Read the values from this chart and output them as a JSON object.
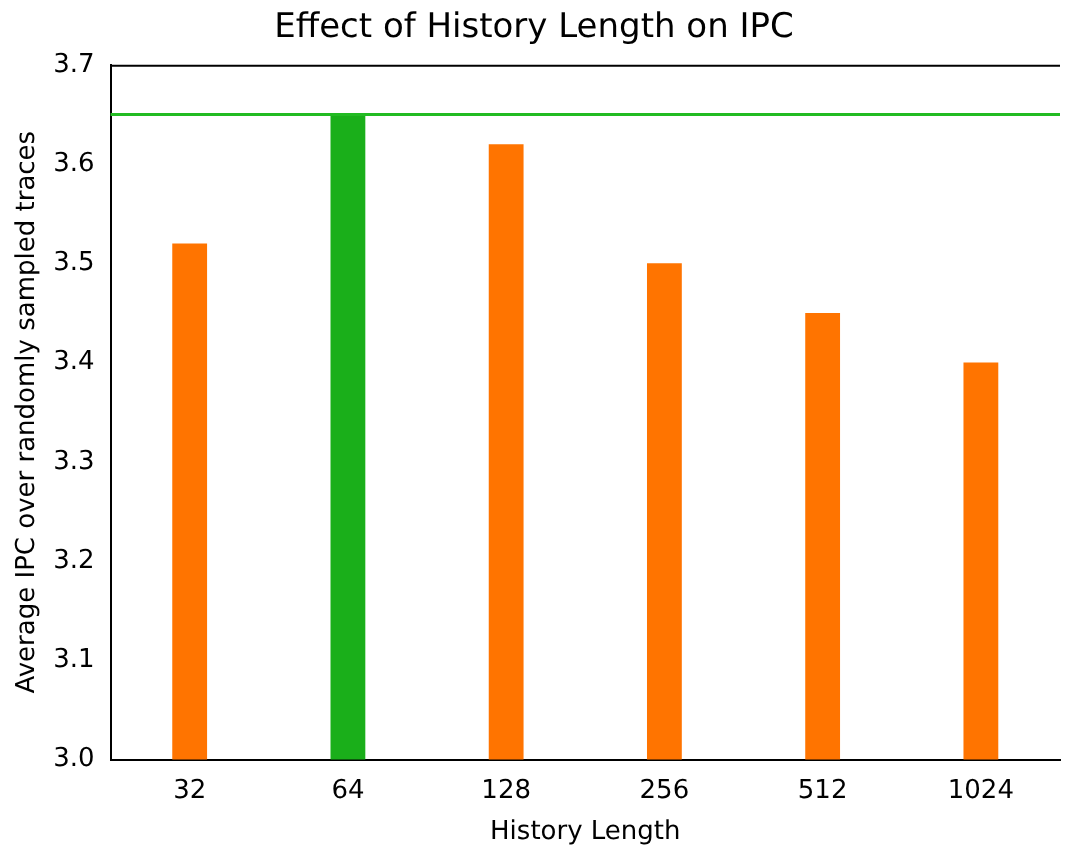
{
  "chart_data": {
    "type": "bar",
    "title": "Effect of History Length on IPC",
    "xlabel": "History Length",
    "ylabel": "Average IPC over randomly sampled traces",
    "categories": [
      "32",
      "64",
      "128",
      "256",
      "512",
      "1024"
    ],
    "values": [
      3.52,
      3.65,
      3.62,
      3.5,
      3.45,
      3.4
    ],
    "colors": [
      "#ff7400",
      "#1aaf1a",
      "#ff7400",
      "#ff7400",
      "#ff7400",
      "#ff7400"
    ],
    "ylim": [
      3.0,
      3.7
    ],
    "yticks": [
      {
        "value": 3.0,
        "label": "3.0"
      },
      {
        "value": 3.1,
        "label": "3.1"
      },
      {
        "value": 3.2,
        "label": "3.2"
      },
      {
        "value": 3.3,
        "label": "3.3"
      },
      {
        "value": 3.4,
        "label": "3.4"
      },
      {
        "value": 3.5,
        "label": "3.5"
      },
      {
        "value": 3.6,
        "label": "3.6"
      },
      {
        "value": 3.7,
        "label": "3.7"
      }
    ],
    "ref_lines": [
      {
        "axis": "y",
        "value": 3.65,
        "color": "#22bb22"
      }
    ],
    "grid": false,
    "legend": false
  }
}
